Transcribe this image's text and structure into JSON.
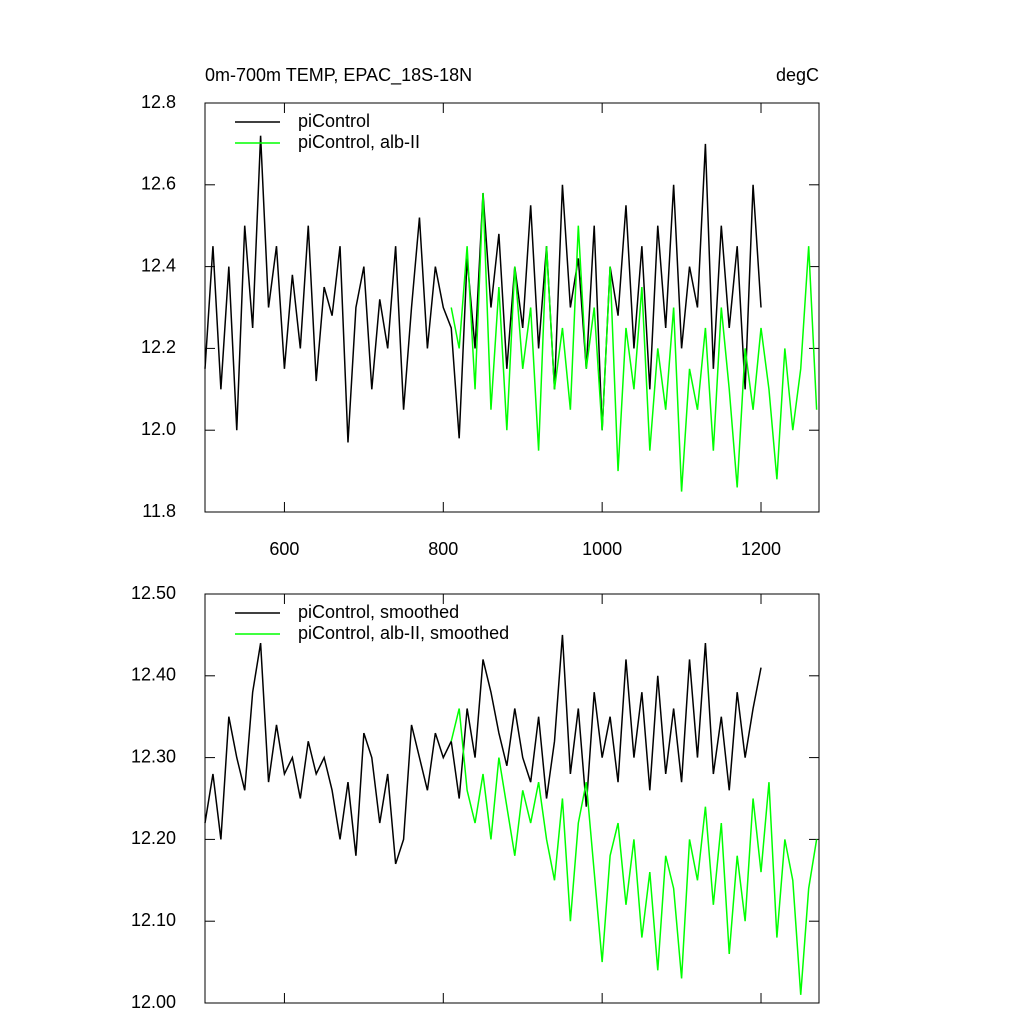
{
  "chart_data": [
    {
      "type": "line",
      "title": "0m-700m TEMP, EPAC_18S-18N",
      "units": "degC",
      "xlim": [
        500,
        1273
      ],
      "ylim": [
        11.8,
        12.8
      ],
      "xtick_labels": true,
      "xticks": [
        600,
        800,
        1000,
        1200
      ],
      "yticks": [
        {
          "value": 11.8,
          "label": "11.8"
        },
        {
          "value": 12.0,
          "label": "12.0"
        },
        {
          "value": 12.2,
          "label": "12.2"
        },
        {
          "value": 12.4,
          "label": "12.4"
        },
        {
          "value": 12.6,
          "label": "12.6"
        },
        {
          "value": 12.8,
          "label": "12.8"
        }
      ],
      "series": [
        {
          "name": "piControl",
          "color": "#000000",
          "x": [
            500,
            510,
            520,
            530,
            540,
            550,
            560,
            570,
            580,
            590,
            600,
            610,
            620,
            630,
            640,
            650,
            660,
            670,
            680,
            690,
            700,
            710,
            720,
            730,
            740,
            750,
            760,
            770,
            780,
            790,
            800,
            810,
            820,
            830,
            840,
            850,
            860,
            870,
            880,
            890,
            900,
            910,
            920,
            930,
            940,
            950,
            960,
            970,
            980,
            990,
            1000,
            1010,
            1020,
            1030,
            1040,
            1050,
            1060,
            1070,
            1080,
            1090,
            1100,
            1110,
            1120,
            1130,
            1140,
            1150,
            1160,
            1170,
            1180,
            1190,
            1200
          ],
          "values": [
            12.15,
            12.45,
            12.1,
            12.4,
            12.0,
            12.5,
            12.25,
            12.72,
            12.3,
            12.45,
            12.15,
            12.38,
            12.2,
            12.5,
            12.12,
            12.35,
            12.28,
            12.45,
            11.97,
            12.3,
            12.4,
            12.1,
            12.32,
            12.2,
            12.45,
            12.05,
            12.3,
            12.52,
            12.2,
            12.4,
            12.3,
            12.25,
            11.98,
            12.42,
            12.2,
            12.58,
            12.3,
            12.48,
            12.15,
            12.4,
            12.25,
            12.55,
            12.2,
            12.45,
            12.1,
            12.6,
            12.3,
            12.42,
            12.15,
            12.5,
            12.0,
            12.4,
            12.28,
            12.55,
            12.2,
            12.45,
            12.1,
            12.5,
            12.25,
            12.6,
            12.2,
            12.4,
            12.3,
            12.7,
            12.15,
            12.5,
            12.25,
            12.45,
            12.1,
            12.6,
            12.3
          ]
        },
        {
          "name": "piControl, alb-II",
          "color": "#00ff00",
          "x": [
            810,
            820,
            830,
            840,
            850,
            860,
            870,
            880,
            890,
            900,
            910,
            920,
            930,
            940,
            950,
            960,
            970,
            980,
            990,
            1000,
            1010,
            1020,
            1030,
            1040,
            1050,
            1060,
            1070,
            1080,
            1090,
            1100,
            1110,
            1120,
            1130,
            1140,
            1150,
            1160,
            1170,
            1180,
            1190,
            1200,
            1210,
            1220,
            1230,
            1240,
            1250,
            1260,
            1270
          ],
          "values": [
            12.3,
            12.2,
            12.45,
            12.1,
            12.58,
            12.05,
            12.35,
            12.0,
            12.4,
            12.15,
            12.3,
            11.95,
            12.45,
            12.1,
            12.25,
            12.05,
            12.5,
            12.15,
            12.3,
            12.0,
            12.4,
            11.9,
            12.25,
            12.1,
            12.35,
            11.95,
            12.2,
            12.05,
            12.3,
            11.85,
            12.15,
            12.05,
            12.25,
            11.95,
            12.3,
            12.1,
            11.86,
            12.2,
            12.05,
            12.25,
            12.1,
            11.88,
            12.2,
            12.0,
            12.15,
            12.45,
            12.05
          ]
        }
      ]
    },
    {
      "type": "line",
      "xlim": [
        500,
        1273
      ],
      "ylim": [
        12.0,
        12.5
      ],
      "xtick_labels": false,
      "xticks": [
        600,
        800,
        1000,
        1200
      ],
      "yticks": [
        {
          "value": 12.0,
          "label": "12.00"
        },
        {
          "value": 12.1,
          "label": "12.10"
        },
        {
          "value": 12.2,
          "label": "12.20"
        },
        {
          "value": 12.3,
          "label": "12.30"
        },
        {
          "value": 12.4,
          "label": "12.40"
        },
        {
          "value": 12.5,
          "label": "12.50"
        }
      ],
      "series": [
        {
          "name": "piControl, smoothed",
          "color": "#000000",
          "x": [
            500,
            510,
            520,
            530,
            540,
            550,
            560,
            570,
            580,
            590,
            600,
            610,
            620,
            630,
            640,
            650,
            660,
            670,
            680,
            690,
            700,
            710,
            720,
            730,
            740,
            750,
            760,
            770,
            780,
            790,
            800,
            810,
            820,
            830,
            840,
            850,
            860,
            870,
            880,
            890,
            900,
            910,
            920,
            930,
            940,
            950,
            960,
            970,
            980,
            990,
            1000,
            1010,
            1020,
            1030,
            1040,
            1050,
            1060,
            1070,
            1080,
            1090,
            1100,
            1110,
            1120,
            1130,
            1140,
            1150,
            1160,
            1170,
            1180,
            1190,
            1200
          ],
          "values": [
            12.22,
            12.28,
            12.2,
            12.35,
            12.3,
            12.26,
            12.38,
            12.44,
            12.27,
            12.34,
            12.28,
            12.3,
            12.25,
            12.32,
            12.28,
            12.3,
            12.26,
            12.2,
            12.27,
            12.18,
            12.33,
            12.3,
            12.22,
            12.28,
            12.17,
            12.2,
            12.34,
            12.3,
            12.26,
            12.33,
            12.3,
            12.32,
            12.25,
            12.36,
            12.3,
            12.42,
            12.38,
            12.33,
            12.29,
            12.36,
            12.3,
            12.27,
            12.35,
            12.25,
            12.32,
            12.45,
            12.28,
            12.36,
            12.24,
            12.38,
            12.3,
            12.35,
            12.27,
            12.42,
            12.3,
            12.38,
            12.26,
            12.4,
            12.28,
            12.36,
            12.27,
            12.42,
            12.3,
            12.44,
            12.28,
            12.35,
            12.26,
            12.38,
            12.3,
            12.36,
            12.41
          ]
        },
        {
          "name": "piControl, alb-II, smoothed",
          "color": "#00ff00",
          "x": [
            810,
            820,
            830,
            840,
            850,
            860,
            870,
            880,
            890,
            900,
            910,
            920,
            930,
            940,
            950,
            960,
            970,
            980,
            990,
            1000,
            1010,
            1020,
            1030,
            1040,
            1050,
            1060,
            1070,
            1080,
            1090,
            1100,
            1110,
            1120,
            1130,
            1140,
            1150,
            1160,
            1170,
            1180,
            1190,
            1200,
            1210,
            1220,
            1230,
            1240,
            1250,
            1260,
            1270
          ],
          "values": [
            12.32,
            12.36,
            12.26,
            12.22,
            12.28,
            12.2,
            12.3,
            12.24,
            12.18,
            12.26,
            12.22,
            12.27,
            12.2,
            12.15,
            12.25,
            12.1,
            12.22,
            12.27,
            12.16,
            12.05,
            12.18,
            12.22,
            12.12,
            12.2,
            12.08,
            12.16,
            12.04,
            12.18,
            12.14,
            12.03,
            12.2,
            12.15,
            12.24,
            12.12,
            12.22,
            12.06,
            12.18,
            12.1,
            12.25,
            12.16,
            12.27,
            12.08,
            12.2,
            12.15,
            12.01,
            12.14,
            12.2
          ]
        }
      ]
    }
  ]
}
